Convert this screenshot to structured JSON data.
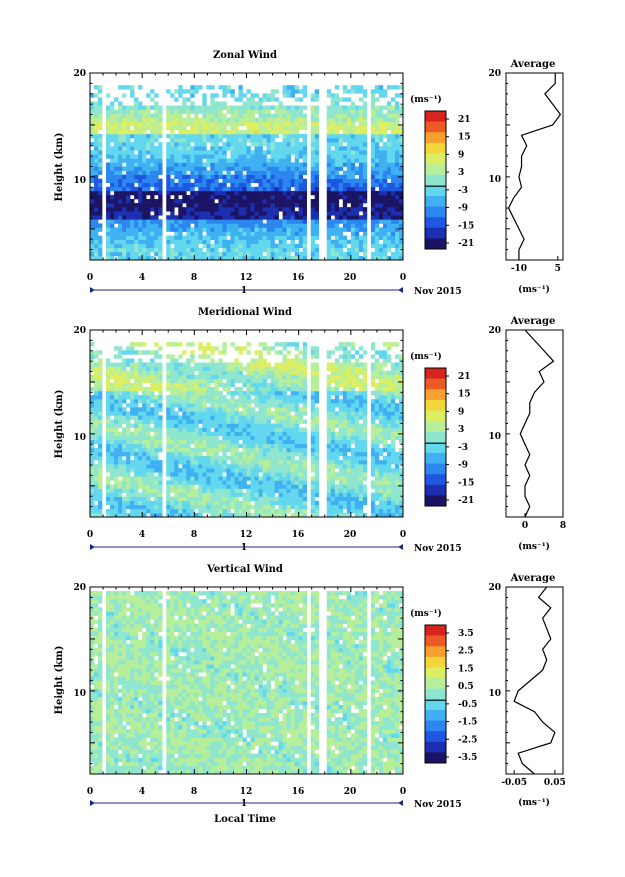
{
  "chart_data": [
    {
      "type": "heatmap",
      "title": "Zonal Wind",
      "ylabel": "Height (km)",
      "x": {
        "range": [
          0,
          24
        ],
        "ticks": [
          "0",
          "4",
          "8",
          "12",
          "16",
          "20",
          "0"
        ]
      },
      "y": {
        "range": [
          2,
          20
        ],
        "ticks": [
          "10",
          "20"
        ]
      },
      "colorbar": {
        "unit": "(ms⁻¹)",
        "ticks": [
          "21",
          "15",
          "9",
          "3",
          "-3",
          "-9",
          "-15",
          "-21"
        ],
        "range": [
          -24,
          24
        ]
      },
      "date_label": "Nov 2015",
      "day_label": "1",
      "seed": 11,
      "bias": -10,
      "average": {
        "title": "Average",
        "unit": "(ms⁻¹)",
        "xlim": [
          -15,
          7
        ],
        "xticks": [
          "-10",
          "5"
        ],
        "xtick_values": [
          -10,
          5
        ],
        "heights": [
          2,
          3,
          4,
          5,
          6,
          7,
          8,
          9,
          10,
          11,
          12,
          13,
          14,
          15,
          16,
          17,
          18,
          19,
          20
        ],
        "values": [
          -10,
          -10,
          -8,
          -10,
          -12,
          -14,
          -12,
          -9,
          -10,
          -9,
          -9,
          -7,
          -9,
          3,
          6,
          3,
          0,
          4,
          4
        ]
      }
    },
    {
      "type": "heatmap",
      "title": "Meridional Wind",
      "ylabel": "Height (km)",
      "x": {
        "range": [
          0,
          24
        ],
        "ticks": [
          "0",
          "4",
          "8",
          "12",
          "16",
          "20",
          "0"
        ]
      },
      "y": {
        "range": [
          2,
          20
        ],
        "ticks": [
          "10",
          "20"
        ]
      },
      "colorbar": {
        "unit": "(ms⁻¹)",
        "ticks": [
          "21",
          "15",
          "9",
          "3",
          "-3",
          "-9",
          "-15",
          "-21"
        ],
        "range": [
          -24,
          24
        ]
      },
      "date_label": "Nov 2015",
      "day_label": "1",
      "seed": 23,
      "bias": -2,
      "average": {
        "title": "Average",
        "unit": "(ms⁻¹)",
        "xlim": [
          -4,
          8
        ],
        "xticks": [
          "0",
          "8"
        ],
        "xtick_values": [
          0,
          8
        ],
        "heights": [
          2,
          3,
          4,
          5,
          6,
          7,
          8,
          9,
          10,
          11,
          12,
          13,
          14,
          15,
          16,
          17,
          18,
          19,
          20
        ],
        "values": [
          0,
          1,
          0,
          0,
          1,
          0,
          1,
          0,
          -1,
          0,
          1,
          1,
          2,
          4,
          3,
          6,
          4,
          2,
          0
        ]
      }
    },
    {
      "type": "heatmap",
      "title": "Vertical Wind",
      "ylabel": "Height (km)",
      "xlabel": "Local Time",
      "x": {
        "range": [
          0,
          24
        ],
        "ticks": [
          "0",
          "4",
          "8",
          "12",
          "16",
          "20",
          "0"
        ]
      },
      "y": {
        "range": [
          2,
          20
        ],
        "ticks": [
          "10",
          "20"
        ]
      },
      "colorbar": {
        "unit": "(ms⁻¹)",
        "ticks": [
          "3.5",
          "2.5",
          "1.5",
          "0.5",
          "-0.5",
          "-1.5",
          "-2.5",
          "-3.5"
        ],
        "range": [
          -4,
          4
        ]
      },
      "date_label": "Nov 2015",
      "day_label": "1",
      "seed": 37,
      "bias": 0,
      "average": {
        "title": "Average",
        "unit": "(ms⁻¹)",
        "xlim": [
          -0.07,
          0.07
        ],
        "xticks": [
          "-0.05",
          "0.05"
        ],
        "xtick_values": [
          -0.05,
          0.05
        ],
        "heights": [
          2,
          3,
          4,
          5,
          6,
          7,
          8,
          9,
          10,
          11,
          12,
          13,
          14,
          15,
          16,
          17,
          18,
          19,
          20
        ],
        "values": [
          0.0,
          -0.03,
          -0.04,
          0.04,
          0.05,
          0.02,
          0.0,
          -0.05,
          -0.04,
          -0.01,
          0.02,
          0.03,
          0.02,
          0.04,
          0.03,
          0.02,
          0.04,
          0.01,
          0.03
        ]
      }
    }
  ]
}
